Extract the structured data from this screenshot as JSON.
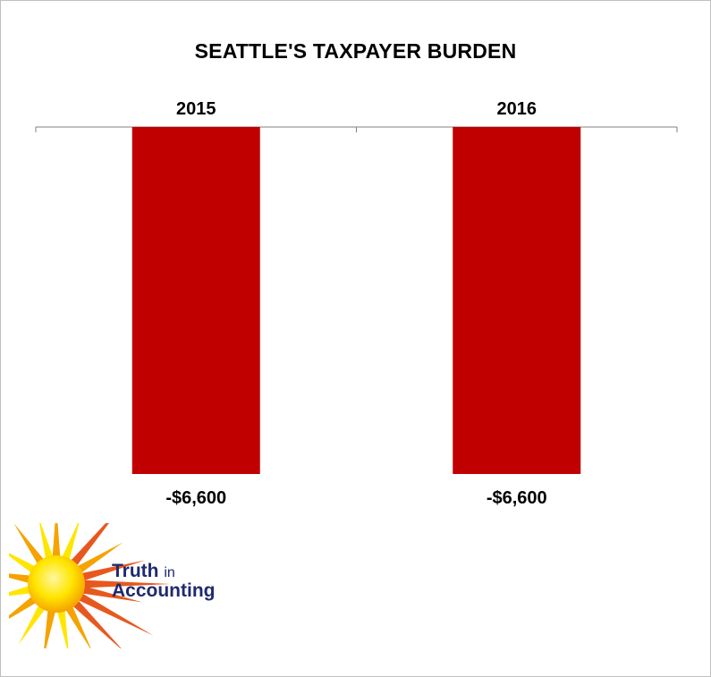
{
  "chart_data": {
    "type": "bar",
    "title": "SEATTLE'S TAXPAYER BURDEN",
    "categories": [
      "2015",
      "2016"
    ],
    "values": [
      -6600,
      -6600
    ],
    "data_labels": [
      "-$6,600",
      "-$6,600"
    ],
    "ylim": [
      -6600,
      0
    ],
    "bar_color": "#c00000",
    "category_axis_position": "top",
    "grid": false,
    "legend": "none"
  },
  "logo": {
    "line1": "Truth",
    "line1_small": "in",
    "line2": "Accounting",
    "text_color": "#1f2a6e",
    "sun_colors": [
      "#ffe600",
      "#f5a300",
      "#e8581e"
    ]
  }
}
